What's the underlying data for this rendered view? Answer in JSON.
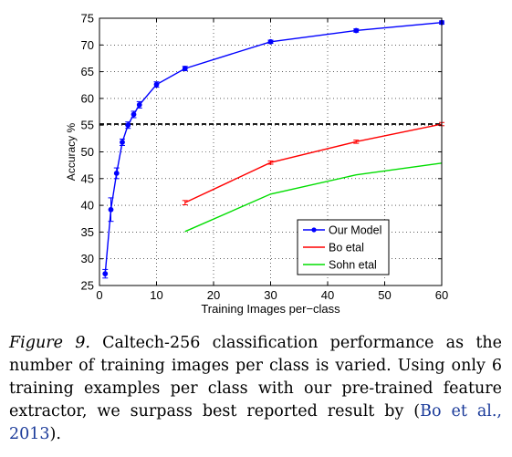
{
  "chart_data": {
    "type": "line",
    "title": "",
    "xlabel": "Training Images per−class",
    "ylabel": "Accuracy %",
    "xlim": [
      0,
      60
    ],
    "ylim": [
      25,
      75
    ],
    "xticks": [
      0,
      10,
      20,
      30,
      40,
      50,
      60
    ],
    "yticks": [
      25,
      30,
      35,
      40,
      45,
      50,
      55,
      60,
      65,
      70,
      75
    ],
    "grid": true,
    "legend_position": "bottom-right",
    "reference_line": {
      "y": 55.2,
      "style": "dashed",
      "color": "#000000"
    },
    "series": [
      {
        "name": "Our Model",
        "color": "#0000ff",
        "marker": "circle",
        "x": [
          1,
          2,
          3,
          4,
          5,
          6,
          7,
          10,
          15,
          30,
          45,
          60
        ],
        "y": [
          27.2,
          39.2,
          46.0,
          51.8,
          55.0,
          57.0,
          58.8,
          62.6,
          65.6,
          70.6,
          72.7,
          74.2
        ],
        "err": [
          0.8,
          2.2,
          1.0,
          0.6,
          0.6,
          0.6,
          0.6,
          0.5,
          0.4,
          0.3,
          0.3,
          0.3
        ]
      },
      {
        "name": "Bo etal",
        "color": "#ff0000",
        "marker": "none",
        "x": [
          15,
          30,
          45,
          60
        ],
        "y": [
          40.5,
          48.0,
          51.9,
          55.2
        ],
        "err": [
          0.4,
          0.3,
          0.3,
          0.3
        ]
      },
      {
        "name": "Sohn etal",
        "color": "#00dd00",
        "marker": "none",
        "x": [
          15,
          30,
          45,
          60
        ],
        "y": [
          35.1,
          42.1,
          45.7,
          47.9
        ],
        "err": []
      }
    ]
  },
  "caption": {
    "label": "Figure 9.",
    "text": "Caltech-256 classification performance as the number of training images per class is varied. Using only 6 training examples per class with our pre-trained feature extractor, we surpass best reported result by (",
    "citation": "Bo et al., 2013",
    "end": ")."
  }
}
